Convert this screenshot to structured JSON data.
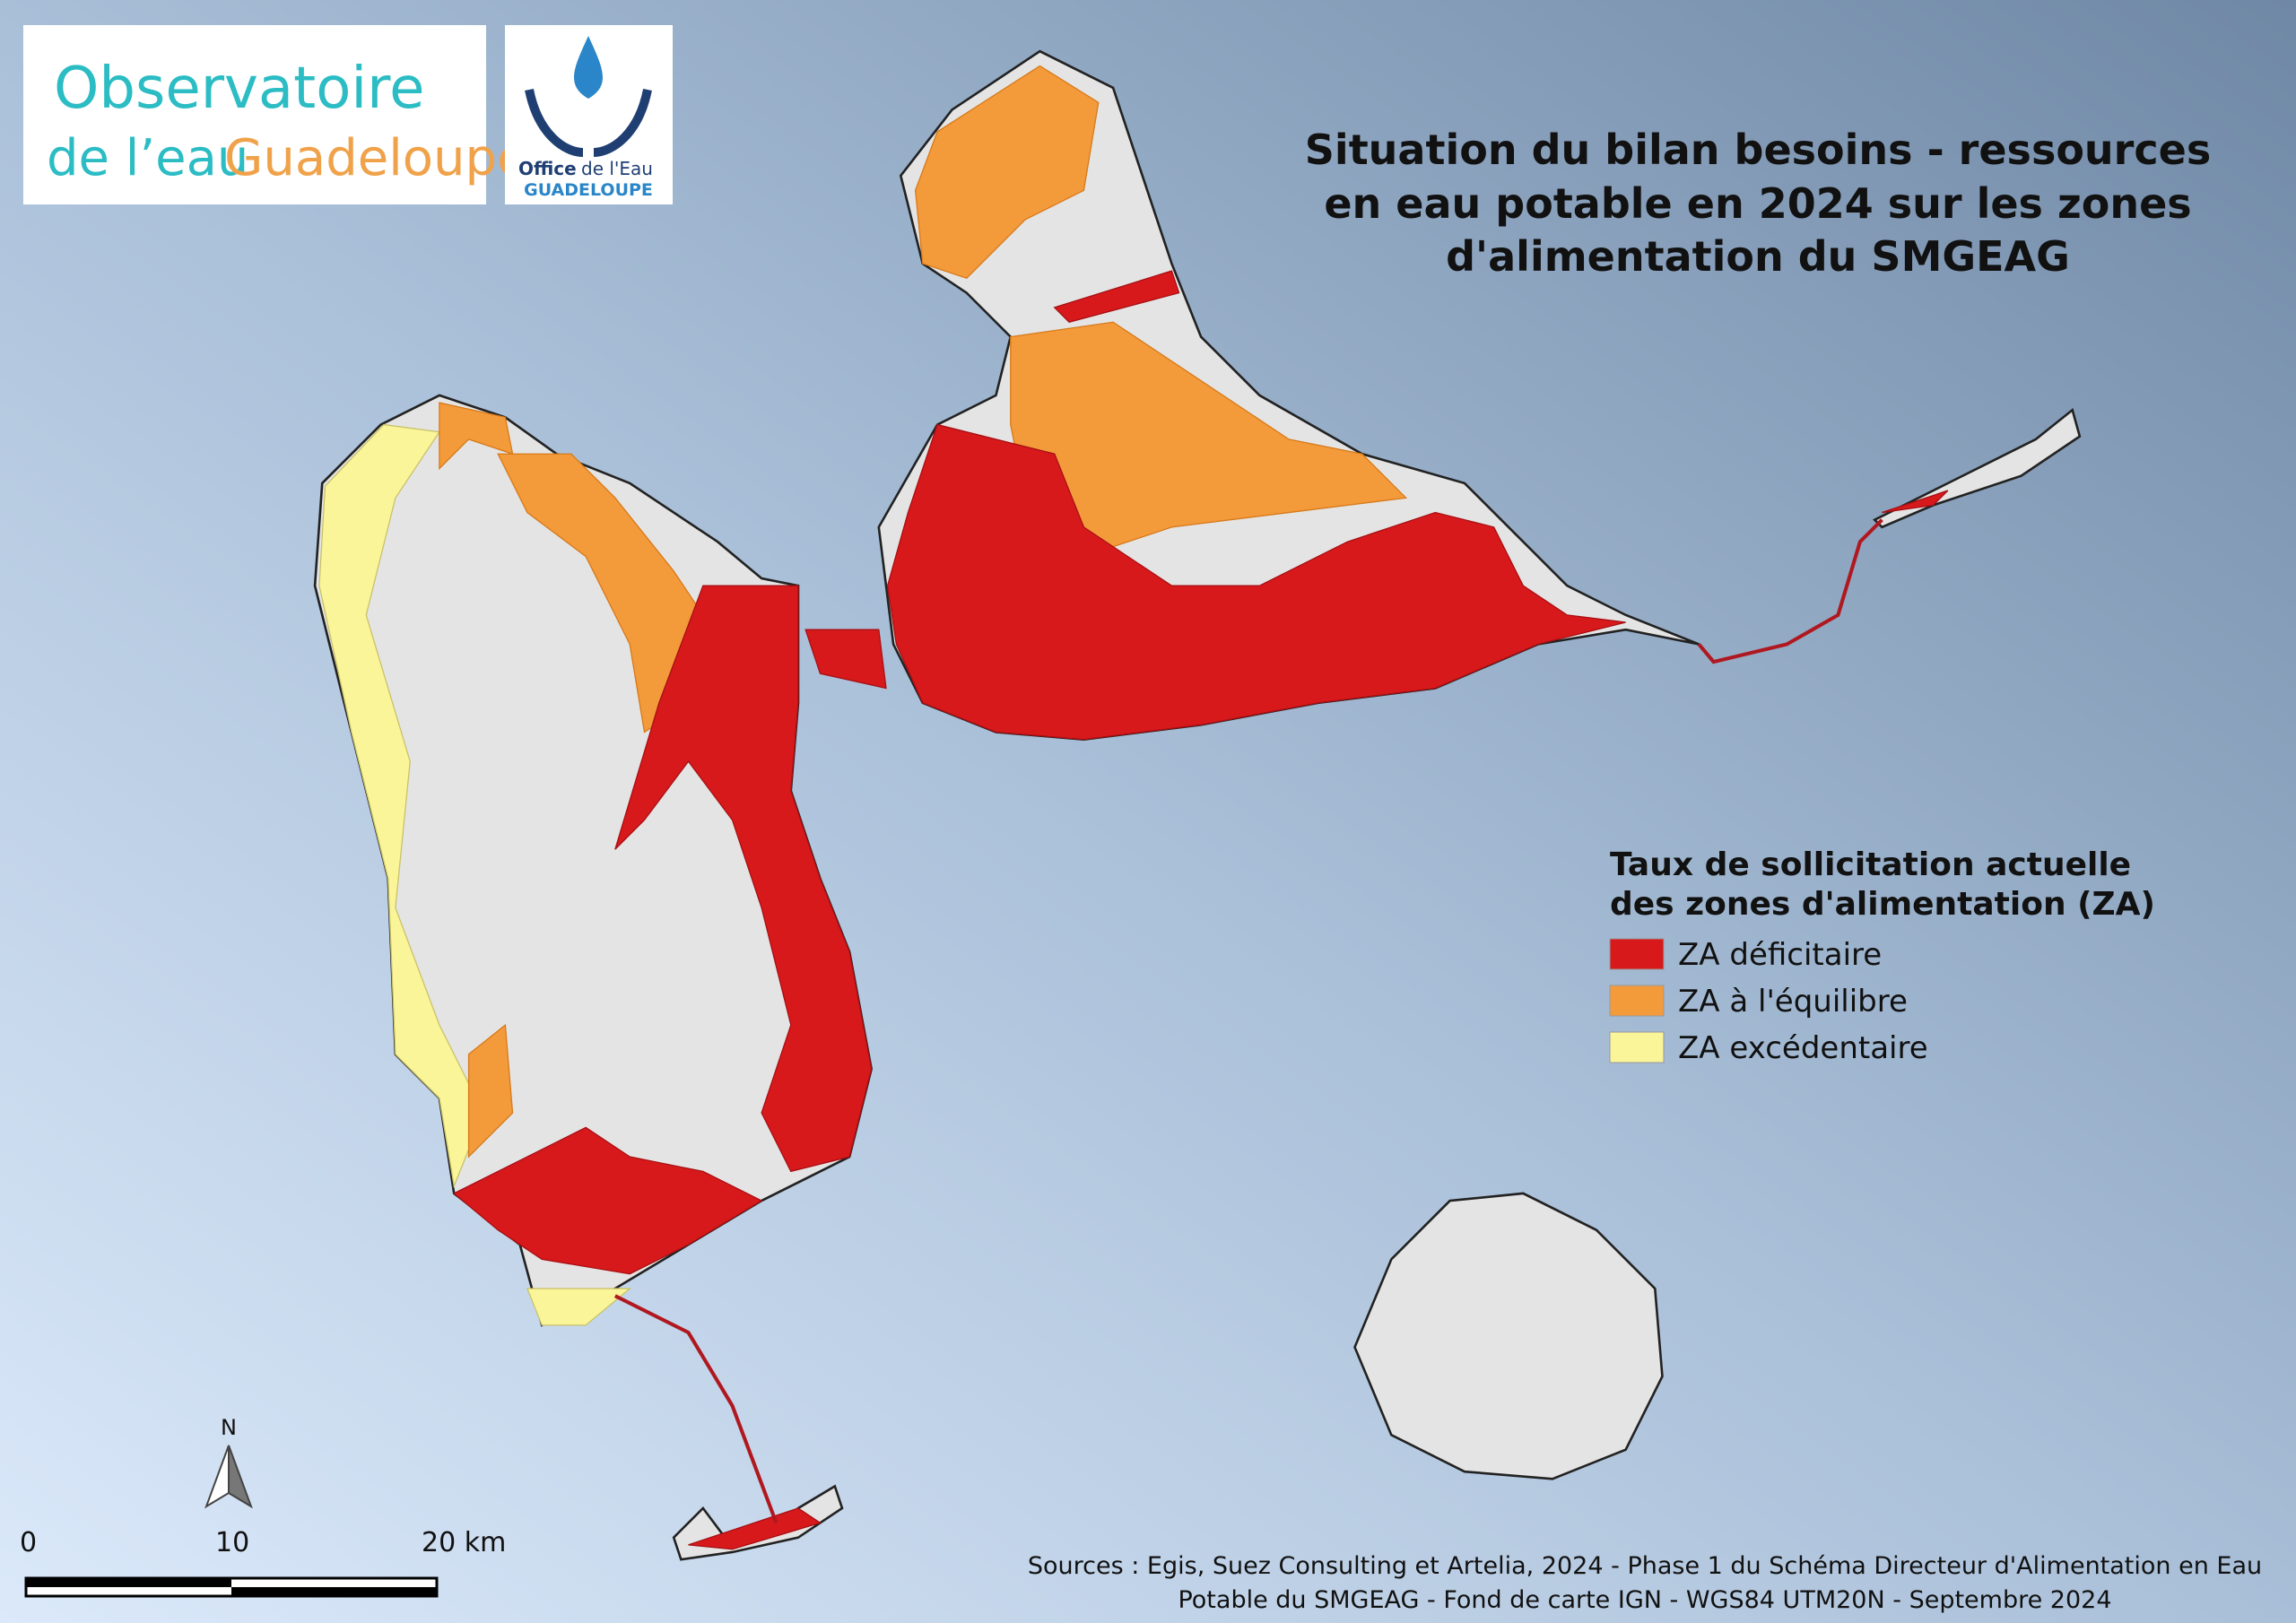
{
  "logos": {
    "observatoire": {
      "line1": "Observatoire",
      "line2a": "de l’eau",
      "line2b": "Guadeloupe"
    },
    "office": {
      "line1a": "Office",
      "line1b": "de l'Eau",
      "line2": "GUADELOUPE"
    }
  },
  "title": [
    "Situation du bilan besoins - ressources",
    "en eau potable en 2024 sur les zones",
    "d'alimentation du SMGEAG"
  ],
  "legend": {
    "title": [
      "Taux de sollicitation actuelle",
      "des zones d'alimentation (ZA)"
    ],
    "items": [
      {
        "label": "ZA déficitaire",
        "color": "#d7191c"
      },
      {
        "label": "ZA à l'équilibre",
        "color": "#f39a3a"
      },
      {
        "label": "ZA excédentaire",
        "color": "#fbf59a"
      }
    ]
  },
  "north": "N",
  "scale_bar": {
    "labels": [
      "0",
      "10",
      "20 km"
    ]
  },
  "sources": [
    "Sources : Egis, Suez Consulting et Artelia, 2024 - Phase 1 du Schéma Directeur d'Alimentation en Eau",
    "Potable du SMGEAG - Fond de carte IGN - WGS84 UTM20N - Septembre 2024"
  ]
}
